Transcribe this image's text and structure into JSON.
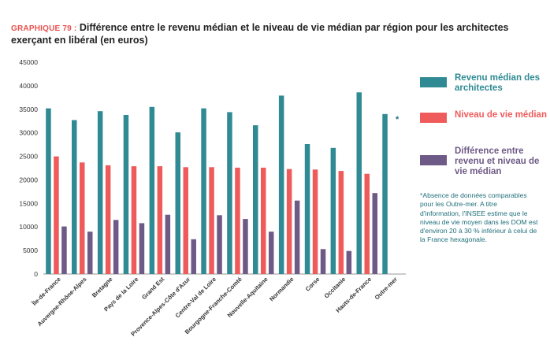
{
  "header": {
    "prefix": "GRAPHIQUE 79 :",
    "text": "Différence entre le revenu médian et le niveau de vie médian par région pour les architectes exerçant en libéral (en euros)"
  },
  "colors": {
    "revenu": "#2f8a93",
    "niveau": "#ef5b5b",
    "difference": "#6e5a86",
    "axis_text": "#333333",
    "grid": "#dddddd"
  },
  "note": {
    "marker": "*",
    "text": "*Absence de données comparables pour les Outre-mer. A titre d'information, l'INSEE estime que le niveau de vie moyen dans les DOM est d'environ 20 à 30 % inférieur à celui de la France hexagonale."
  },
  "chart_data": {
    "type": "bar",
    "title": "",
    "xlabel": "",
    "ylabel": "",
    "ylim": [
      0,
      45000
    ],
    "yticks": [
      "0",
      "5000",
      "10000",
      "15000",
      "20000",
      "25000",
      "30000",
      "35000",
      "40000",
      "45000"
    ],
    "grid": false,
    "legend_position": "right",
    "categories": [
      "Île-de-France",
      "Auvergne-Rhône-Alpes",
      "Bretagne",
      "Pays de la Loire",
      "Grand Est",
      "Provence-Alpes-Côte d'Azur",
      "Centre-Val de Loire",
      "Bourgogne-Franche-Comté",
      "Nouvelle-Aquitaine",
      "Normandie",
      "Corse",
      "Occitanie",
      "Hauts-de-France",
      "Outre-mer"
    ],
    "series": [
      {
        "name": "Revenu médian des architectes",
        "color": "#2f8a93",
        "values": [
          35200,
          32700,
          34600,
          33800,
          35500,
          30100,
          35200,
          34400,
          31600,
          37900,
          27600,
          26800,
          38600,
          34000
        ]
      },
      {
        "name": "Niveau de vie médian",
        "color": "#ef5b5b",
        "values": [
          25000,
          23700,
          23100,
          22900,
          22900,
          22700,
          22700,
          22600,
          22600,
          22300,
          22200,
          21900,
          21300,
          null
        ]
      },
      {
        "name": "Différence entre revenu et niveau de vie médian",
        "color": "#6e5a86",
        "values": [
          10100,
          9000,
          11500,
          10800,
          12600,
          7400,
          12500,
          11700,
          9000,
          15600,
          5300,
          4900,
          17200,
          null
        ]
      }
    ]
  }
}
